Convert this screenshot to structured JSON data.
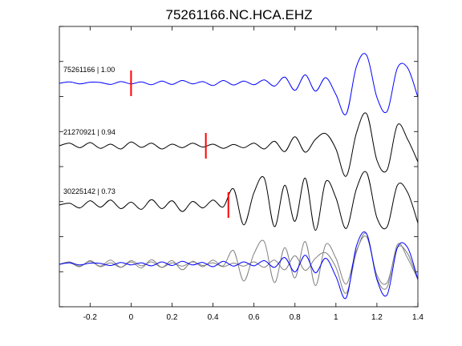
{
  "chart_data": {
    "type": "line",
    "title": "75261166.NC.HCA.EHZ",
    "xlim": [
      -0.35,
      1.4
    ],
    "x_ticks": [
      "-0.2",
      "0",
      "0.2",
      "0.4",
      "0.6",
      "0.8",
      "1",
      "1.2",
      "1.4"
    ],
    "x_tick_values": [
      -0.2,
      0,
      0.2,
      0.4,
      0.6,
      0.8,
      1,
      1.2,
      1.4
    ],
    "y_ticks_count": 9,
    "grid": false,
    "colors": {
      "master": "#0000ff",
      "other": "#000000",
      "overlay_other": "#808080",
      "pick": "#ff0000"
    },
    "traces": [
      {
        "label": "75261166 | 1.00",
        "pick_x": 0.0,
        "color": "#0000ff"
      },
      {
        "label": "21270921 | 0.94",
        "pick_x": 0.365,
        "color": "#000000"
      },
      {
        "label": "30225142 | 0.73",
        "pick_x": 0.475,
        "color": "#000000"
      }
    ],
    "waveforms": [
      {
        "name": "75261166",
        "x": [
          -0.35,
          -0.3,
          -0.25,
          -0.2,
          -0.15,
          -0.1,
          -0.05,
          0,
          0.05,
          0.1,
          0.15,
          0.2,
          0.25,
          0.3,
          0.35,
          0.4,
          0.45,
          0.5,
          0.55,
          0.6,
          0.65,
          0.7,
          0.75,
          0.8,
          0.85,
          0.9,
          0.95,
          1.0,
          1.05,
          1.1,
          1.15,
          1.2,
          1.25,
          1.3,
          1.35,
          1.4
        ],
        "y": [
          0,
          0.05,
          -0.02,
          0.04,
          0.03,
          -0.04,
          0.06,
          -0.02,
          0.05,
          -0.05,
          0.08,
          -0.04,
          0.1,
          -0.02,
          0.06,
          -0.08,
          0.1,
          -0.06,
          0.08,
          -0.05,
          0.12,
          -0.1,
          0.22,
          -0.25,
          0.3,
          -0.28,
          0.2,
          -0.4,
          -1.1,
          0.6,
          1.0,
          -0.5,
          -1.0,
          0.55,
          0.55,
          -0.5
        ]
      },
      {
        "name": "21270921",
        "x": [
          -0.35,
          -0.3,
          -0.25,
          -0.2,
          -0.15,
          -0.1,
          -0.05,
          0,
          0.05,
          0.1,
          0.15,
          0.2,
          0.25,
          0.3,
          0.35,
          0.4,
          0.45,
          0.5,
          0.55,
          0.6,
          0.65,
          0.7,
          0.75,
          0.8,
          0.85,
          0.9,
          0.95,
          1.0,
          1.05,
          1.1,
          1.15,
          1.2,
          1.25,
          1.3,
          1.35,
          1.4
        ],
        "y": [
          0,
          0.08,
          -0.06,
          0.1,
          -0.08,
          0.05,
          -0.1,
          0.12,
          -0.05,
          0.08,
          -0.1,
          0.05,
          -0.06,
          0.08,
          -0.04,
          0.05,
          -0.08,
          0.04,
          -0.06,
          0.08,
          -0.1,
          0.14,
          -0.18,
          0.28,
          -0.2,
          0.2,
          0.38,
          -0.1,
          -0.95,
          0.4,
          1.0,
          -0.45,
          -0.75,
          0.65,
          0.2,
          -0.5
        ]
      },
      {
        "name": "30225142",
        "x": [
          -0.35,
          -0.3,
          -0.25,
          -0.2,
          -0.15,
          -0.1,
          -0.05,
          0,
          0.05,
          0.1,
          0.15,
          0.2,
          0.25,
          0.3,
          0.35,
          0.4,
          0.45,
          0.5,
          0.55,
          0.6,
          0.65,
          0.7,
          0.75,
          0.8,
          0.85,
          0.9,
          0.95,
          1.0,
          1.05,
          1.1,
          1.15,
          1.2,
          1.25,
          1.3,
          1.35,
          1.4
        ],
        "y": [
          0,
          0.05,
          -0.08,
          0.12,
          -0.06,
          0.14,
          -0.1,
          0.08,
          -0.12,
          0.15,
          -0.1,
          0.12,
          -0.18,
          0.1,
          -0.08,
          0.14,
          -0.05,
          0.45,
          -0.55,
          0.35,
          0.75,
          -0.6,
          0.55,
          -0.45,
          0.75,
          -0.7,
          0.65,
          0.2,
          -0.65,
          0.45,
          0.9,
          -0.35,
          -0.6,
          0.55,
          0.35,
          -0.5
        ]
      }
    ]
  }
}
